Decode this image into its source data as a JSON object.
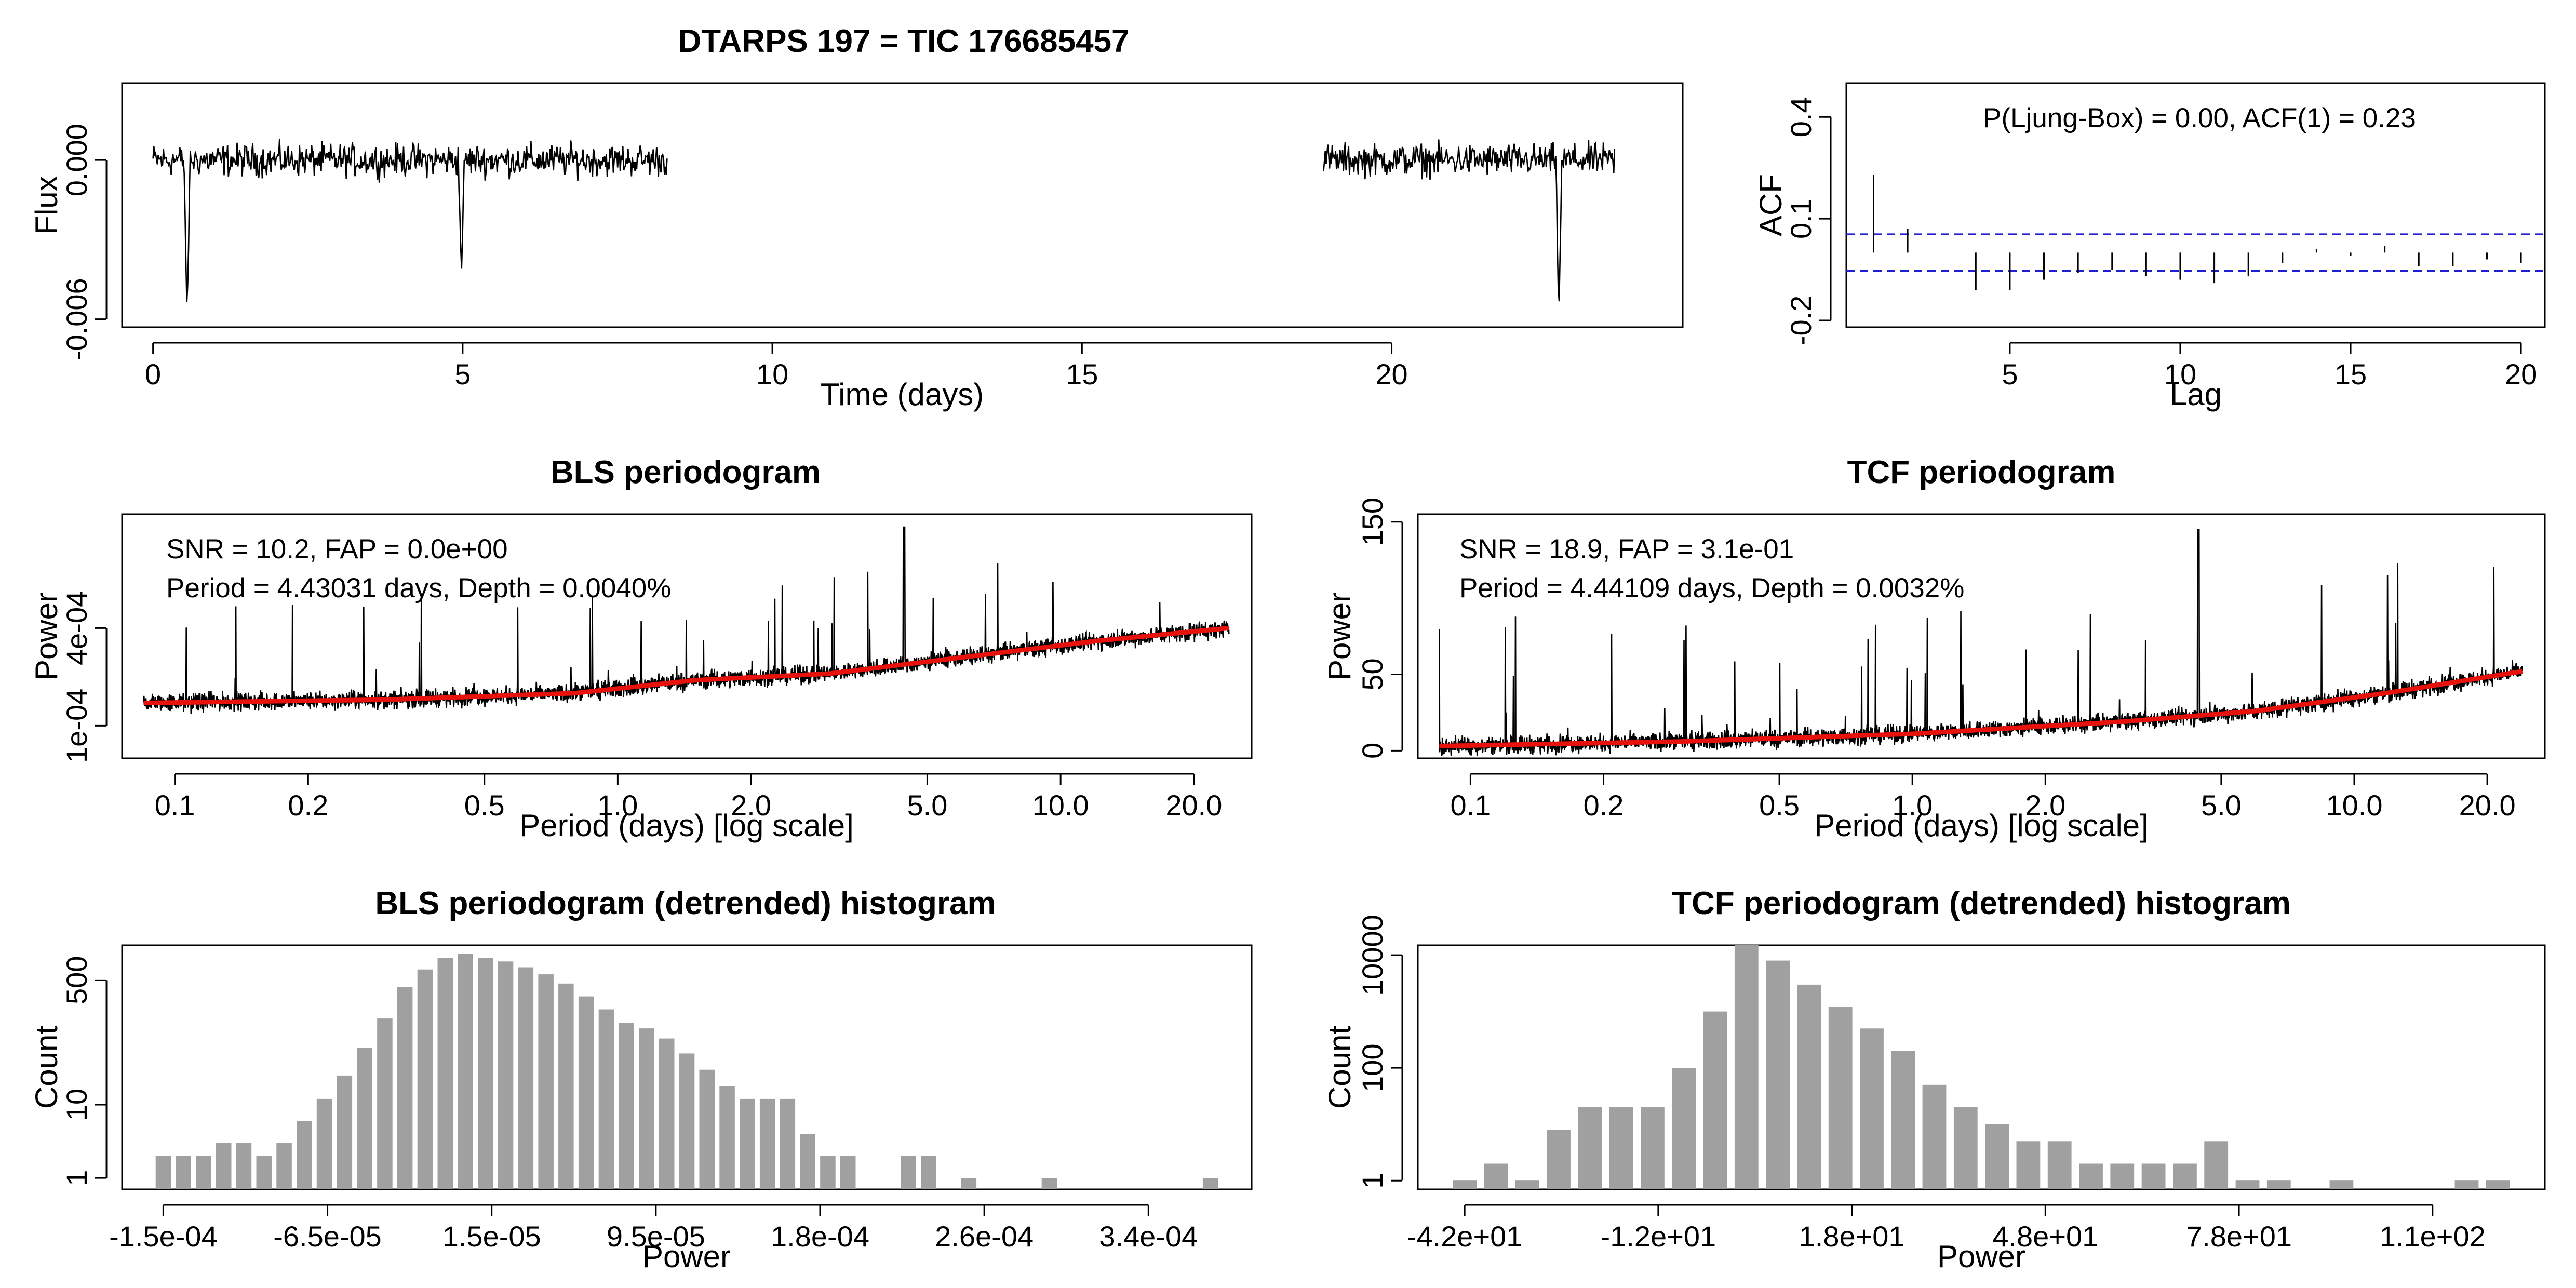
{
  "chart_data": [
    {
      "id": "lightcurve",
      "type": "line",
      "title": "DTARPS 197 = TIC 176685457",
      "xlabel": "Time (days)",
      "ylabel": "Flux",
      "xlim": [
        -0.5,
        24.7
      ],
      "ylim": [
        -0.0063,
        0.0029
      ],
      "x_ticks": [
        0,
        5,
        10,
        15,
        20
      ],
      "x_tick_labels": [
        "0",
        "5",
        "10",
        "15",
        "20"
      ],
      "y_ticks": [
        -0.006,
        0.0
      ],
      "y_tick_labels": [
        "-0.006",
        "0.000"
      ],
      "segments": [
        [
          0.0,
          8.3
        ],
        [
          18.9,
          23.6
        ]
      ],
      "noise_amplitude": 0.0009,
      "dips": [
        {
          "x": 0.55,
          "y": -0.0059
        },
        {
          "x": 4.98,
          "y": -0.0043
        },
        {
          "x": 22.7,
          "y": -0.0059
        }
      ]
    },
    {
      "id": "acf",
      "type": "bar",
      "xlabel": "Lag",
      "ylabel": "ACF",
      "xlim": [
        0.2,
        20.7
      ],
      "ylim": [
        -0.22,
        0.5
      ],
      "x_ticks": [
        5,
        10,
        15,
        20
      ],
      "x_tick_labels": [
        "5",
        "10",
        "15",
        "20"
      ],
      "y_ticks": [
        -0.2,
        0.1,
        0.4
      ],
      "y_tick_labels": [
        "-0.2",
        "0.1",
        "0.4"
      ],
      "annotation": "P(Ljung-Box) = 0.00, ACF(1) = 0.23",
      "confidence_band": 0.054,
      "lags": [
        1,
        2,
        3,
        4,
        5,
        6,
        7,
        8,
        9,
        10,
        11,
        12,
        13,
        14,
        15,
        16,
        17,
        18,
        19,
        20
      ],
      "values": [
        0.23,
        0.07,
        0.0,
        -0.11,
        -0.11,
        -0.08,
        -0.06,
        -0.05,
        -0.07,
        -0.08,
        -0.09,
        -0.07,
        -0.03,
        0.01,
        -0.01,
        0.02,
        -0.04,
        -0.04,
        -0.02,
        -0.03
      ]
    },
    {
      "id": "bls",
      "type": "line",
      "title": "BLS periodogram",
      "xlabel": "Period (days) [log scale]",
      "ylabel": "Power",
      "xscale": "log",
      "xlim": [
        0.076,
        27
      ],
      "ylim": [
        0.0,
        0.00075
      ],
      "x_ticks": [
        0.1,
        0.2,
        0.5,
        1.0,
        2.0,
        5.0,
        10.0,
        20.0
      ],
      "x_tick_labels": [
        "0.1",
        "0.2",
        "0.5",
        "1.0",
        "2.0",
        "5.0",
        "10.0",
        "20.0"
      ],
      "y_ticks": [
        0.0001,
        0.0004
      ],
      "y_tick_labels": [
        "1e-04",
        "4e-04"
      ],
      "annotation_lines": [
        "SNR = 10.2, FAP = 0.0e+00",
        "Period = 4.43031 days, Depth = 0.0040%"
      ],
      "baseline": [
        [
          0.085,
          0.00017
        ],
        [
          0.3,
          0.00018
        ],
        [
          0.8,
          0.0002
        ],
        [
          1.5,
          0.00024
        ],
        [
          3.0,
          0.00026
        ],
        [
          6.0,
          0.00031
        ],
        [
          12.0,
          0.00036
        ],
        [
          24.0,
          0.0004
        ]
      ],
      "peak": {
        "x": 4.43,
        "y": 0.00071
      }
    },
    {
      "id": "tcf",
      "type": "line",
      "title": "TCF periodogram",
      "xlabel": "Period (days) [log scale]",
      "ylabel": "Power",
      "xscale": "log",
      "xlim": [
        0.076,
        27
      ],
      "ylim": [
        -5,
        155
      ],
      "x_ticks": [
        0.1,
        0.2,
        0.5,
        1.0,
        2.0,
        5.0,
        10.0,
        20.0
      ],
      "x_tick_labels": [
        "0.1",
        "0.2",
        "0.5",
        "1.0",
        "2.0",
        "5.0",
        "10.0",
        "20.0"
      ],
      "y_ticks": [
        0,
        50,
        150
      ],
      "y_tick_labels": [
        "0",
        "50",
        "150"
      ],
      "annotation_lines": [
        "SNR = 18.9, FAP = 3.1e-01",
        "Period = 4.44109 days, Depth = 0.0032%"
      ],
      "baseline": [
        [
          0.085,
          3
        ],
        [
          0.3,
          6
        ],
        [
          1.0,
          11
        ],
        [
          3.0,
          19
        ],
        [
          6.0,
          26
        ],
        [
          12.0,
          38
        ],
        [
          24.0,
          52
        ]
      ],
      "peak": {
        "x": 4.44,
        "y": 145
      }
    },
    {
      "id": "bls_hist",
      "type": "bar",
      "title": "BLS periodogram (detrended) histogram",
      "xlabel": "Power",
      "ylabel": "Count",
      "yscale": "log",
      "ylim": [
        0.7,
        1500
      ],
      "x_tick_labels": [
        "-1.5e-04",
        "-6.5e-05",
        "1.5e-05",
        "9.5e-05",
        "1.8e-04",
        "2.6e-04",
        "3.4e-04"
      ],
      "y_ticks": [
        1,
        10,
        500
      ],
      "y_tick_labels": [
        "1",
        "10",
        "500"
      ],
      "bin_count": 53,
      "values": [
        2,
        2,
        2,
        3,
        3,
        2,
        3,
        6,
        12,
        25,
        60,
        150,
        400,
        700,
        1000,
        1150,
        1000,
        900,
        750,
        600,
        450,
        300,
        200,
        130,
        110,
        80,
        50,
        30,
        18,
        12,
        12,
        12,
        4,
        2,
        2,
        0,
        0,
        2,
        2,
        0,
        1,
        0,
        0,
        0,
        1,
        0,
        0,
        0,
        0,
        0,
        0,
        0,
        1
      ]
    },
    {
      "id": "tcf_hist",
      "type": "bar",
      "title": "TCF periodogram (detrended) histogram",
      "xlabel": "Power",
      "ylabel": "Count",
      "yscale": "log",
      "ylim": [
        0.7,
        15000
      ],
      "x_tick_labels": [
        "-4.2e+01",
        "-1.2e+01",
        "1.8e+01",
        "4.8e+01",
        "7.8e+01",
        "1.1e+02"
      ],
      "y_ticks": [
        1,
        100,
        10000
      ],
      "y_tick_labels": [
        "1",
        "100",
        "10000"
      ],
      "bin_count": 34,
      "values": [
        1,
        2,
        1,
        8,
        20,
        20,
        20,
        100,
        1000,
        15000,
        8000,
        3000,
        1200,
        500,
        200,
        50,
        20,
        10,
        5,
        5,
        2,
        2,
        2,
        2,
        5,
        1,
        1,
        0,
        1,
        0,
        0,
        0,
        1,
        1
      ]
    }
  ]
}
